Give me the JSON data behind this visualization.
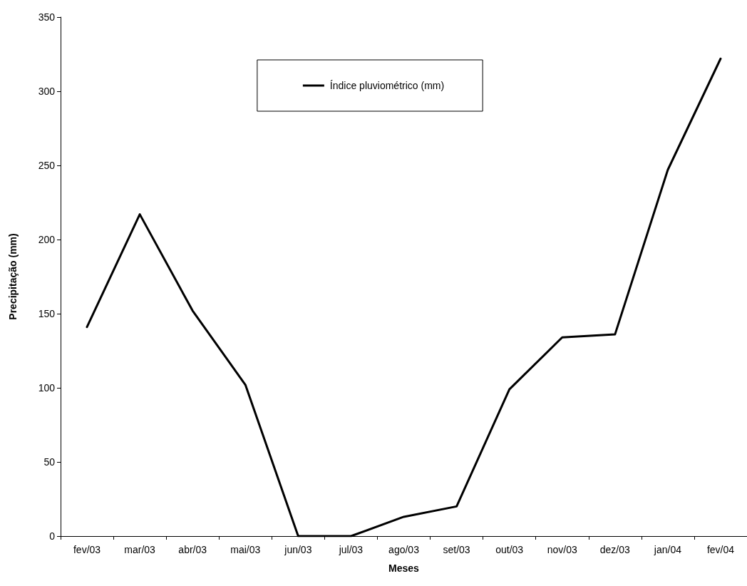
{
  "chart_data": {
    "type": "line",
    "xlabel": "Meses",
    "ylabel": "Precipitação (mm)",
    "categories": [
      "fev/03",
      "mar/03",
      "abr/03",
      "mai/03",
      "jun/03",
      "jul/03",
      "ago/03",
      "set/03",
      "out/03",
      "nov/03",
      "dez/03",
      "jan/04",
      "fev/04"
    ],
    "series": [
      {
        "name": "Índice pluviométrico (mm)",
        "color": "#000000",
        "values": [
          141,
          217,
          152,
          102,
          0,
          0,
          13,
          20,
          99,
          134,
          136,
          247,
          322
        ]
      }
    ],
    "ylim": [
      0,
      350
    ],
    "yticks": [
      0,
      50,
      100,
      150,
      200,
      250,
      300,
      350
    ],
    "grid": false,
    "legend": "top",
    "marker": "none",
    "line_style": "solid"
  }
}
